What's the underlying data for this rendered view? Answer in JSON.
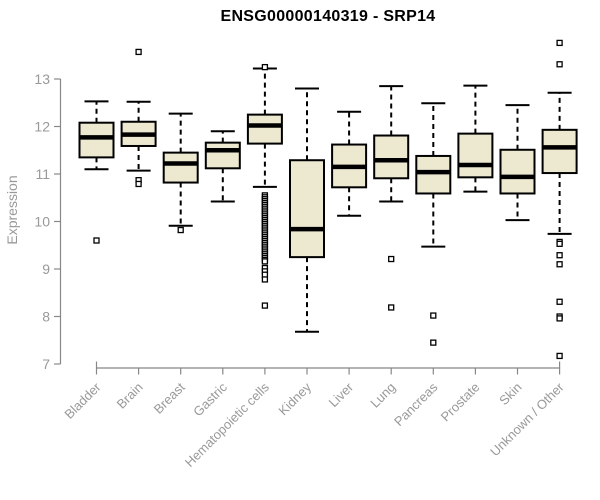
{
  "chart_data": {
    "type": "boxplot",
    "title": "ENSG00000140319 - SRP14",
    "ylabel": "Expression",
    "ylim": [
      7,
      13.8
    ],
    "yticks": [
      7,
      8,
      9,
      10,
      11,
      12,
      13
    ],
    "grid": false,
    "categories": [
      "Bladder",
      "Brain",
      "Breast",
      "Gastric",
      "Hematopoietic cells",
      "Kidney",
      "Liver",
      "Lung",
      "Pancreas",
      "Prostate",
      "Skin",
      "Unknown / Other"
    ],
    "boxes": [
      {
        "category": "Bladder",
        "whisker_low": 11.1,
        "q1": 11.35,
        "median": 11.77,
        "q3": 12.08,
        "whisker_high": 12.53,
        "outliers": [
          9.6
        ]
      },
      {
        "category": "Brain",
        "whisker_low": 11.07,
        "q1": 11.59,
        "median": 11.83,
        "q3": 12.1,
        "whisker_high": 12.52,
        "outliers": [
          13.57,
          10.87,
          10.79
        ]
      },
      {
        "category": "Breast",
        "whisker_low": 9.91,
        "q1": 10.82,
        "median": 11.22,
        "q3": 11.45,
        "whisker_high": 12.27,
        "outliers": [
          9.82
        ]
      },
      {
        "category": "Gastric",
        "whisker_low": 10.42,
        "q1": 11.12,
        "median": 11.5,
        "q3": 11.66,
        "whisker_high": 11.9,
        "outliers": []
      },
      {
        "category": "Hematopoietic cells",
        "whisker_low": 10.73,
        "q1": 11.64,
        "median": 12.02,
        "q3": 12.25,
        "whisker_high": 13.22,
        "outliers": [
          13.25,
          10.55,
          10.51,
          10.47,
          10.43,
          10.39,
          10.35,
          10.31,
          10.27,
          10.23,
          10.19,
          10.15,
          10.11,
          10.07,
          10.03,
          9.99,
          9.95,
          9.91,
          9.87,
          9.83,
          9.79,
          9.75,
          9.71,
          9.67,
          9.63,
          9.59,
          9.55,
          9.51,
          9.47,
          9.43,
          9.39,
          9.35,
          9.31,
          9.27,
          9.23,
          9.19,
          9.16,
          9.02,
          8.95,
          8.88,
          8.78,
          8.23
        ]
      },
      {
        "category": "Kidney",
        "whisker_low": 7.68,
        "q1": 9.25,
        "median": 9.84,
        "q3": 11.29,
        "whisker_high": 12.8,
        "outliers": []
      },
      {
        "category": "Liver",
        "whisker_low": 10.12,
        "q1": 10.72,
        "median": 11.15,
        "q3": 11.62,
        "whisker_high": 12.31,
        "outliers": []
      },
      {
        "category": "Lung",
        "whisker_low": 10.42,
        "q1": 10.91,
        "median": 11.29,
        "q3": 11.81,
        "whisker_high": 12.85,
        "outliers": [
          9.21,
          8.19
        ]
      },
      {
        "category": "Pancreas",
        "whisker_low": 9.47,
        "q1": 10.59,
        "median": 11.04,
        "q3": 11.38,
        "whisker_high": 12.49,
        "outliers": [
          8.02,
          7.45
        ]
      },
      {
        "category": "Prostate",
        "whisker_low": 10.63,
        "q1": 10.93,
        "median": 11.19,
        "q3": 11.85,
        "whisker_high": 12.86,
        "outliers": []
      },
      {
        "category": "Skin",
        "whisker_low": 10.03,
        "q1": 10.59,
        "median": 10.94,
        "q3": 11.51,
        "whisker_high": 12.45,
        "outliers": []
      },
      {
        "category": "Unknown / Other",
        "whisker_low": 9.74,
        "q1": 11.02,
        "median": 11.56,
        "q3": 11.93,
        "whisker_high": 12.71,
        "outliers": [
          13.76,
          13.31,
          9.57,
          9.53,
          9.29,
          9.1,
          8.31,
          8.0,
          7.96,
          7.17
        ]
      }
    ],
    "colors": {
      "box_fill": "#EDE8D0",
      "box_border": "#000000",
      "median": "#000000",
      "whisker": "#000000",
      "outlier_fill": "#ffffff",
      "axis": "#888888",
      "tick_label": "#999999",
      "title": "#000000",
      "background": "#ffffff"
    },
    "legend": null
  }
}
